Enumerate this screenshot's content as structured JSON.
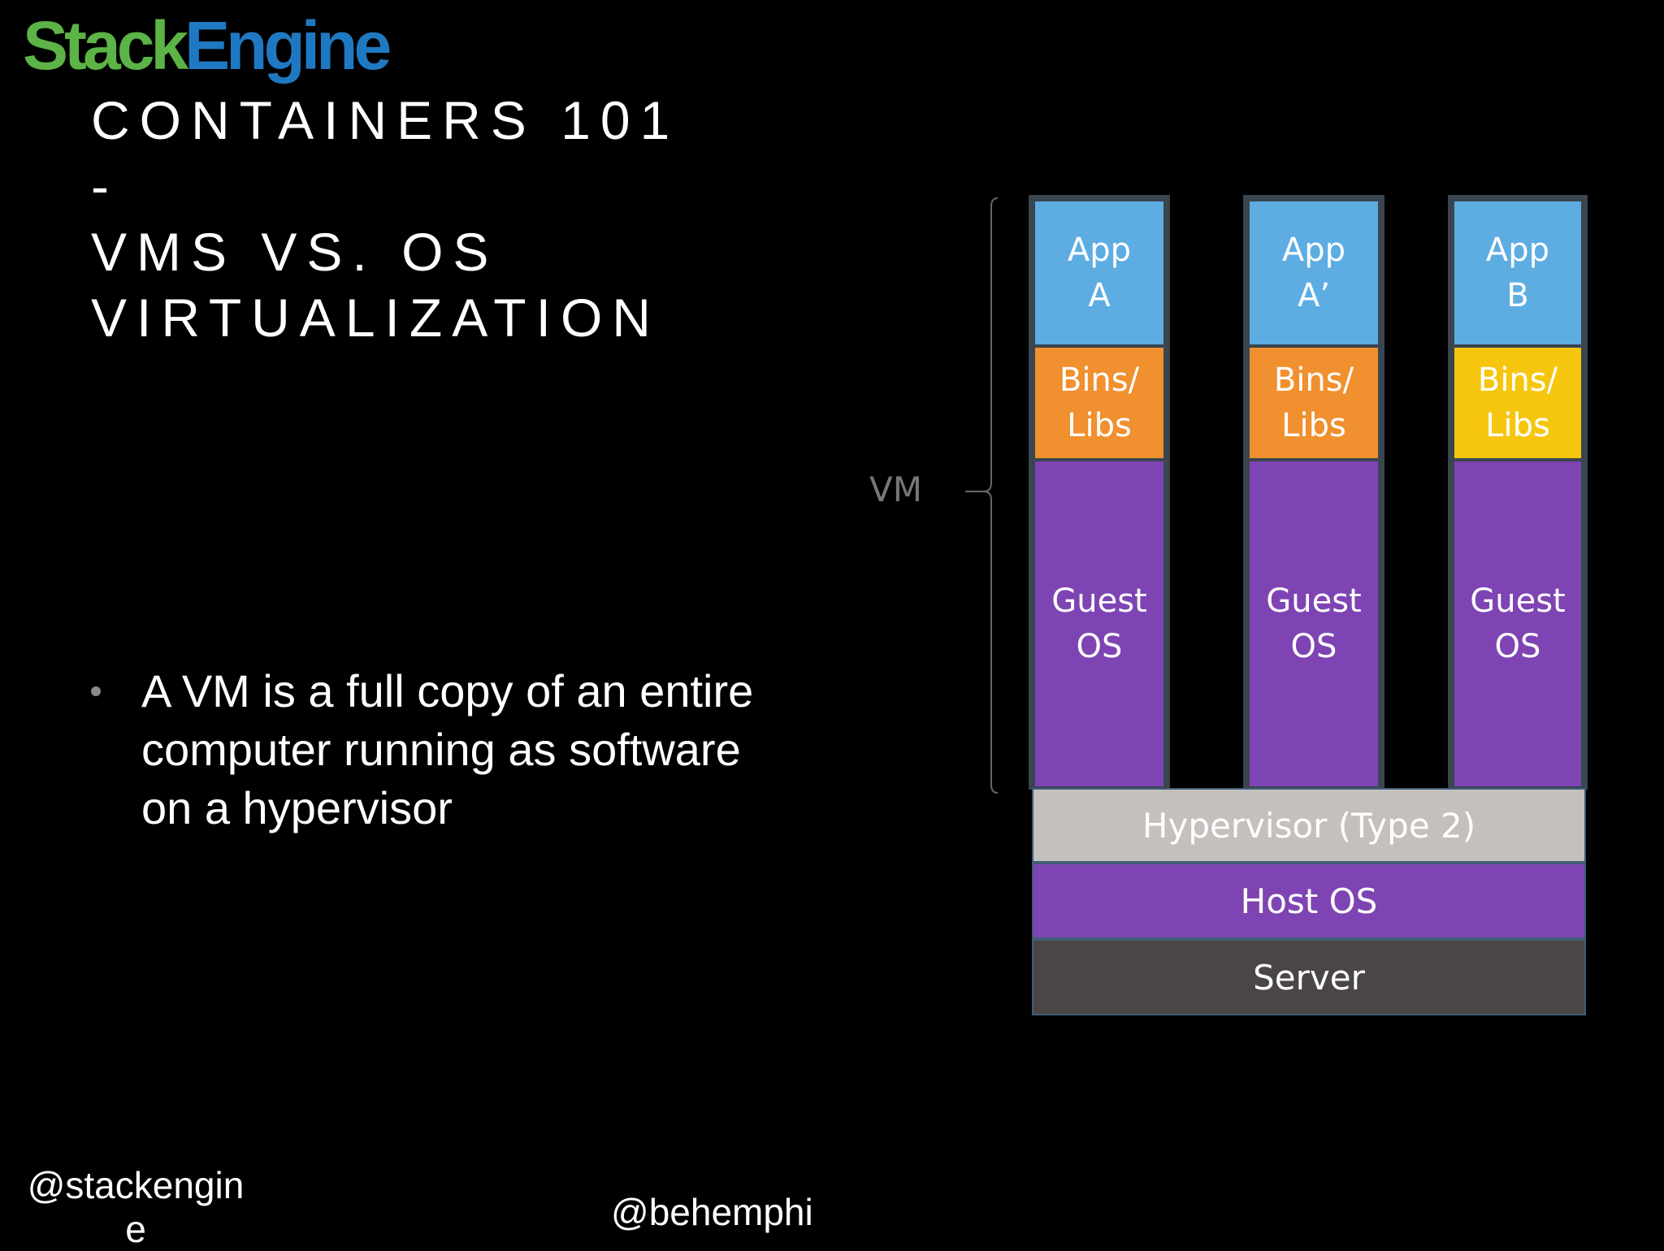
{
  "logo": {
    "part1": "Stack",
    "part2": "Engine"
  },
  "title": {
    "line1": "CONTAINERS 101",
    "line2": "-",
    "line3": "VMS VS. OS",
    "line4": "VIRTUALIZATION"
  },
  "bullet": "A VM is a full copy of an entire computer running as software on a hypervisor",
  "footer": {
    "left_handle": "@stackengine",
    "right_handle": "@behemphi"
  },
  "diagram": {
    "vm_label": "VM",
    "columns": [
      {
        "app": "App\nA",
        "bins": "Bins/\nLibs",
        "guest": "Guest\nOS"
      },
      {
        "app": "App\nA’",
        "bins": "Bins/\nLibs",
        "guest": "Guest\nOS"
      },
      {
        "app": "App\nB",
        "bins": "Bins/\nLibs",
        "guest": "Guest\nOS"
      }
    ],
    "hypervisor": "Hypervisor (Type 2)",
    "host_os": "Host OS",
    "server": "Server"
  },
  "colors": {
    "logo_green": "#5cb346",
    "logo_blue": "#1f79c2",
    "app": "#5dade2",
    "bins_orange": "#f0902e",
    "bins_yellow": "#f6c60f",
    "guest_os": "#7e44b3",
    "hypervisor": "#c4c0bd",
    "host_os": "#7e44b3",
    "server": "#4a4646"
  }
}
